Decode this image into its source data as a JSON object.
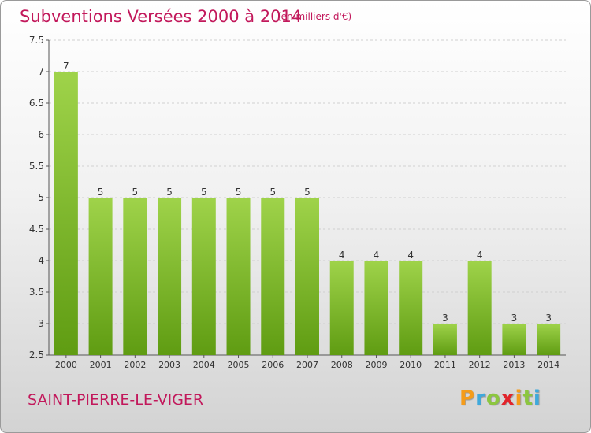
{
  "header": {
    "title": "Subventions Versées 2000 à 2014",
    "subtitle": "(en milliers d'€)"
  },
  "footer": {
    "commune": "SAINT-PIERRE-LE-VIGER",
    "logo_letters": [
      "P",
      "r",
      "o",
      "x",
      "i",
      "t",
      "i"
    ],
    "logo_colors": [
      "#f59c1a",
      "#3fa9dc",
      "#8cc63f",
      "#e2242b",
      "#f59c1a",
      "#8cc63f",
      "#3fa9dc"
    ]
  },
  "chart_data": {
    "type": "bar",
    "title": "Subventions Versées 2000 à 2014",
    "subtitle": "(en milliers d'€)",
    "categories": [
      "2000",
      "2001",
      "2002",
      "2003",
      "2004",
      "2005",
      "2006",
      "2007",
      "2008",
      "2009",
      "2010",
      "2011",
      "2012",
      "2013",
      "2014"
    ],
    "values": [
      7,
      5,
      5,
      5,
      5,
      5,
      5,
      5,
      4,
      4,
      4,
      3,
      4,
      3,
      3
    ],
    "data_labels": [
      "7",
      "5",
      "5",
      "5",
      "5",
      "5",
      "5",
      "5",
      "4",
      "4",
      "4",
      "3",
      "4",
      "3",
      "3"
    ],
    "ylim": [
      2.5,
      7.5
    ],
    "yticks": [
      2.5,
      3,
      3.5,
      4,
      4.5,
      5,
      5.5,
      6,
      6.5,
      7,
      7.5
    ],
    "ytick_labels": [
      "2.5",
      "3",
      "3.5",
      "4",
      "4.5",
      "5",
      "5.5",
      "6",
      "6.5",
      "7",
      "7.5"
    ],
    "grid": true,
    "bar_color_top": "#9fd34a",
    "bar_color_bottom": "#5f9c12"
  }
}
